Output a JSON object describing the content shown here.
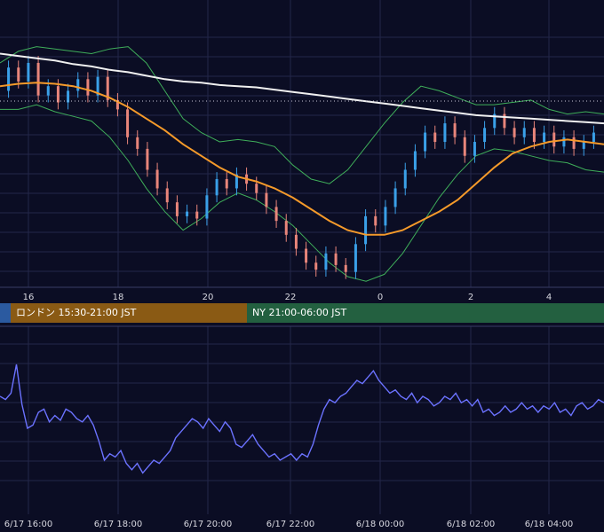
{
  "sessions": {
    "tokyo": {
      "label": "",
      "color": "#2b5aa0"
    },
    "london": {
      "label": "ロンドン 15:30-21:00 JST",
      "color": "#8a5a14"
    },
    "ny": {
      "label": "NY 21:00-06:00 JST",
      "color": "#236040"
    }
  },
  "colors": {
    "background": "#0b0d24",
    "grid": "#23264a",
    "up_candle": "#3aa0e8",
    "down_candle": "#e8857a",
    "bollinger": "#3fae5a",
    "ma_short": "#f59a2a",
    "ma_long": "#f0f0f0",
    "oscillator": "#6b72ff"
  },
  "chart_data": [
    {
      "type": "candlestick",
      "title": "",
      "x_tick_labels": [
        "16",
        "18",
        "20",
        "22",
        "0",
        "2",
        "4"
      ],
      "overlays": [
        "bollinger-bands",
        "moving-average-orange",
        "moving-average-white"
      ],
      "price_line": "dotted",
      "y_scale": [
        0,
        100
      ],
      "ma_long": [
        96,
        95,
        94,
        93,
        91.5,
        90.5,
        89,
        88,
        86.5,
        85,
        84,
        83.5,
        82.5,
        82,
        81.5,
        80.5,
        79.5,
        78.5,
        77.5,
        76.5,
        75.5,
        74.5,
        73.5,
        72.5,
        71.5,
        70.5,
        69.5,
        69,
        68.5,
        68,
        67.5,
        67,
        66.5,
        66
      ],
      "ma_short": [
        82,
        83,
        83.5,
        83,
        82,
        80,
        77,
        73,
        68,
        63,
        57,
        52,
        47,
        43,
        41,
        38,
        34,
        29,
        24,
        20,
        18,
        18,
        20,
        24,
        28,
        33,
        40,
        47,
        53,
        56,
        58,
        59,
        58,
        57
      ],
      "bb_upper": [
        92,
        97,
        99,
        98,
        97,
        96,
        98,
        99,
        92,
        80,
        68,
        62,
        58,
        59,
        58,
        56,
        48,
        42,
        40,
        46,
        56,
        66,
        75,
        82,
        80,
        77,
        74,
        74,
        75,
        76,
        72,
        70,
        71,
        70
      ],
      "bb_lower": [
        72,
        72,
        74,
        71,
        69,
        67,
        60,
        50,
        38,
        28,
        20,
        25,
        32,
        36,
        33,
        28,
        22,
        14,
        6,
        0,
        -2,
        1,
        10,
        22,
        34,
        44,
        52,
        55,
        54,
        52,
        50,
        49,
        46,
        45
      ],
      "candles": [
        {
          "o": 80,
          "c": 90
        },
        {
          "o": 90,
          "c": 84
        },
        {
          "o": 84,
          "c": 92
        },
        {
          "o": 92,
          "c": 78
        },
        {
          "o": 78,
          "c": 82
        },
        {
          "o": 82,
          "c": 75
        },
        {
          "o": 75,
          "c": 80
        },
        {
          "o": 80,
          "c": 85
        },
        {
          "o": 85,
          "c": 78
        },
        {
          "o": 78,
          "c": 86
        },
        {
          "o": 86,
          "c": 76
        },
        {
          "o": 76,
          "c": 72
        },
        {
          "o": 72,
          "c": 60
        },
        {
          "o": 60,
          "c": 55
        },
        {
          "o": 55,
          "c": 46
        },
        {
          "o": 46,
          "c": 38
        },
        {
          "o": 38,
          "c": 32
        },
        {
          "o": 32,
          "c": 26
        },
        {
          "o": 26,
          "c": 28
        },
        {
          "o": 28,
          "c": 25
        },
        {
          "o": 25,
          "c": 35
        },
        {
          "o": 35,
          "c": 42
        },
        {
          "o": 42,
          "c": 38
        },
        {
          "o": 38,
          "c": 44
        },
        {
          "o": 44,
          "c": 40
        },
        {
          "o": 40,
          "c": 36
        },
        {
          "o": 36,
          "c": 30
        },
        {
          "o": 30,
          "c": 24
        },
        {
          "o": 24,
          "c": 18
        },
        {
          "o": 18,
          "c": 12
        },
        {
          "o": 12,
          "c": 6
        },
        {
          "o": 6,
          "c": 3
        },
        {
          "o": 3,
          "c": 10
        },
        {
          "o": 10,
          "c": 5
        },
        {
          "o": 5,
          "c": 2
        },
        {
          "o": 2,
          "c": 14
        },
        {
          "o": 14,
          "c": 26
        },
        {
          "o": 26,
          "c": 22
        },
        {
          "o": 22,
          "c": 30
        },
        {
          "o": 30,
          "c": 38
        },
        {
          "o": 38,
          "c": 46
        },
        {
          "o": 46,
          "c": 54
        },
        {
          "o": 54,
          "c": 62
        },
        {
          "o": 62,
          "c": 58
        },
        {
          "o": 58,
          "c": 66
        },
        {
          "o": 66,
          "c": 60
        },
        {
          "o": 60,
          "c": 52
        },
        {
          "o": 52,
          "c": 58
        },
        {
          "o": 58,
          "c": 64
        },
        {
          "o": 64,
          "c": 70
        },
        {
          "o": 70,
          "c": 64
        },
        {
          "o": 64,
          "c": 60
        },
        {
          "o": 60,
          "c": 64
        },
        {
          "o": 64,
          "c": 58
        },
        {
          "o": 58,
          "c": 62
        },
        {
          "o": 62,
          "c": 56
        },
        {
          "o": 56,
          "c": 60
        },
        {
          "o": 60,
          "c": 55
        },
        {
          "o": 55,
          "c": 58
        },
        {
          "o": 58,
          "c": 62
        }
      ]
    },
    {
      "type": "line",
      "title": "",
      "x_tick_labels": [
        "6/17 16:00",
        "6/17 18:00",
        "6/17 20:00",
        "6/17 22:00",
        "6/18 00:00",
        "6/18 02:00",
        "6/18 04:00"
      ],
      "y_scale": [
        0,
        100
      ],
      "values": [
        60,
        58,
        62,
        80,
        55,
        40,
        42,
        50,
        52,
        44,
        48,
        45,
        52,
        50,
        46,
        44,
        48,
        42,
        32,
        20,
        24,
        22,
        26,
        18,
        14,
        18,
        12,
        16,
        20,
        18,
        22,
        26,
        34,
        38,
        42,
        46,
        44,
        40,
        46,
        42,
        38,
        44,
        40,
        30,
        28,
        32,
        36,
        30,
        26,
        22,
        24,
        20,
        22,
        24,
        20,
        24,
        22,
        30,
        42,
        52,
        58,
        56,
        60,
        62,
        66,
        70,
        68,
        72,
        76,
        70,
        66,
        62,
        64,
        60,
        58,
        62,
        56,
        60,
        58,
        54,
        56,
        60,
        58,
        62,
        56,
        58,
        54,
        58,
        50,
        52,
        48,
        50,
        54,
        50,
        52,
        56,
        52,
        54,
        50,
        54,
        52,
        56,
        50,
        52,
        48,
        54,
        56,
        52,
        54,
        58,
        56
      ]
    }
  ]
}
